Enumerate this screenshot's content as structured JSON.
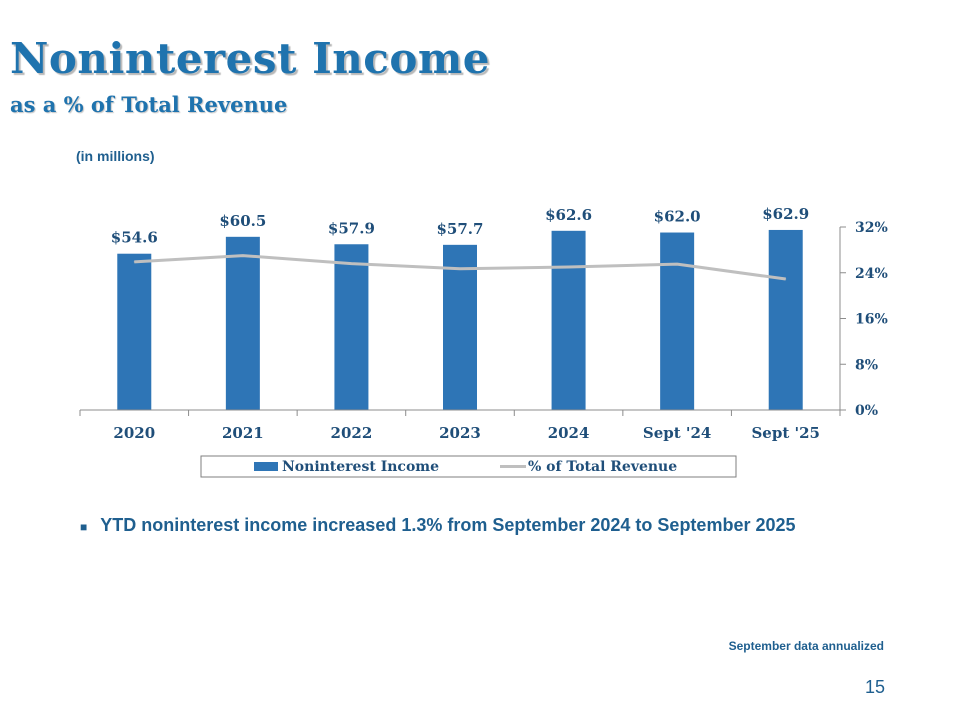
{
  "slide": {
    "title": "Noninterest Income",
    "subtitle": "as a % of Total Revenue",
    "units_note": "(in millions)",
    "bullet_text": "YTD noninterest income increased 1.3% from September 2024 to September 2025",
    "footnote": "September data annualized",
    "page_number": "15"
  },
  "colors": {
    "title": "#1f73ae",
    "bar": "#2e75b6",
    "line": "#bfbfbf",
    "text": "#1f4e79"
  },
  "chart_data": {
    "type": "bar",
    "title": "",
    "categories": [
      "2020",
      "2021",
      "2022",
      "2023",
      "2024",
      "Sept '24",
      "Sept '25"
    ],
    "series": [
      {
        "name": "Noninterest Income",
        "type": "bar",
        "axis": "left",
        "values": [
          54.6,
          60.5,
          57.9,
          57.7,
          62.6,
          62.0,
          62.9
        ],
        "labels": [
          "$54.6",
          "$60.5",
          "$57.9",
          "$57.7",
          "$62.6",
          "$62.0",
          "$62.9"
        ]
      },
      {
        "name": "% of Total Revenue",
        "type": "line",
        "axis": "right",
        "values": [
          25.9,
          27.0,
          25.6,
          24.7,
          25.0,
          25.5,
          22.9
        ]
      }
    ],
    "ylim_left": [
      0,
      80
    ],
    "ylim_right": [
      0,
      32
    ],
    "right_ticks": [
      "0%",
      "8%",
      "16%",
      "24%",
      "32%"
    ],
    "right_tick_values": [
      0,
      8,
      16,
      24,
      32
    ],
    "grid": false,
    "legend_position": "bottom"
  }
}
